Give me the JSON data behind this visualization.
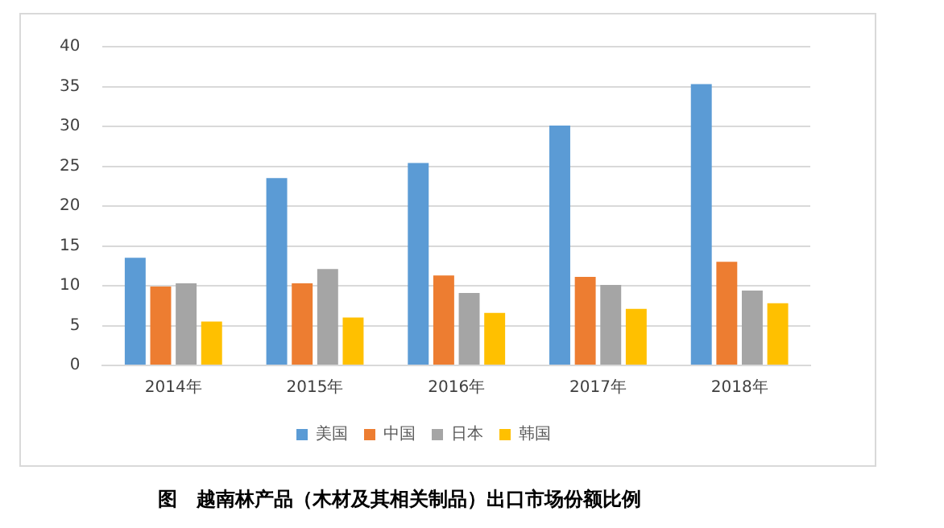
{
  "chart_data": {
    "type": "bar",
    "title": "图　越南林产品（木材及其相关制品）出口市场份额比例",
    "categories": [
      "2014年",
      "2015年",
      "2016年",
      "2017年",
      "2018年"
    ],
    "series": [
      {
        "name": "美国",
        "color": "#5b9bd5",
        "values": [
          13.5,
          23.5,
          25.4,
          30.1,
          35.3
        ]
      },
      {
        "name": "中国",
        "color": "#ed7d31",
        "values": [
          9.9,
          10.3,
          11.3,
          11.1,
          13.0
        ]
      },
      {
        "name": "日本",
        "color": "#a5a5a5",
        "values": [
          10.3,
          12.1,
          9.1,
          10.1,
          9.4
        ]
      },
      {
        "name": "韩国",
        "color": "#ffc000",
        "values": [
          5.5,
          6.0,
          6.6,
          7.1,
          7.8
        ]
      }
    ],
    "ylim": [
      0,
      40
    ],
    "yticks": [
      0,
      5,
      10,
      15,
      20,
      25,
      30,
      35,
      40
    ],
    "grid": "y",
    "legend": "bottom"
  }
}
